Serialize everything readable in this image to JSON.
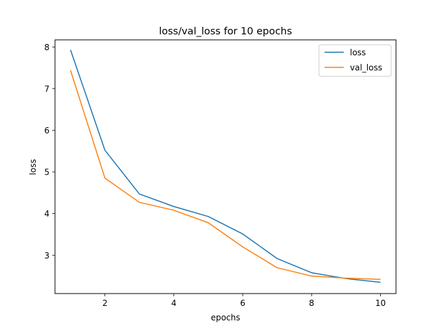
{
  "chart_data": {
    "type": "line",
    "title": "loss/val_loss for 10 epochs",
    "xlabel": "epochs",
    "ylabel": "loss",
    "x": [
      1,
      2,
      3,
      4,
      5,
      6,
      7,
      8,
      9,
      10
    ],
    "xlim": [
      0.55,
      10.45
    ],
    "ylim": [
      2.08,
      8.17
    ],
    "xticks": [
      2,
      4,
      6,
      8,
      10
    ],
    "yticks": [
      3,
      4,
      5,
      6,
      7,
      8
    ],
    "grid": false,
    "legend_position": "top-right",
    "series": [
      {
        "name": "loss",
        "color": "#1f77b4",
        "values": [
          7.93,
          5.52,
          4.47,
          4.17,
          3.93,
          3.51,
          2.92,
          2.58,
          2.44,
          2.35
        ]
      },
      {
        "name": "val_loss",
        "color": "#ff7f0e",
        "values": [
          7.44,
          4.85,
          4.27,
          4.08,
          3.78,
          3.2,
          2.7,
          2.5,
          2.45,
          2.42
        ]
      }
    ]
  }
}
